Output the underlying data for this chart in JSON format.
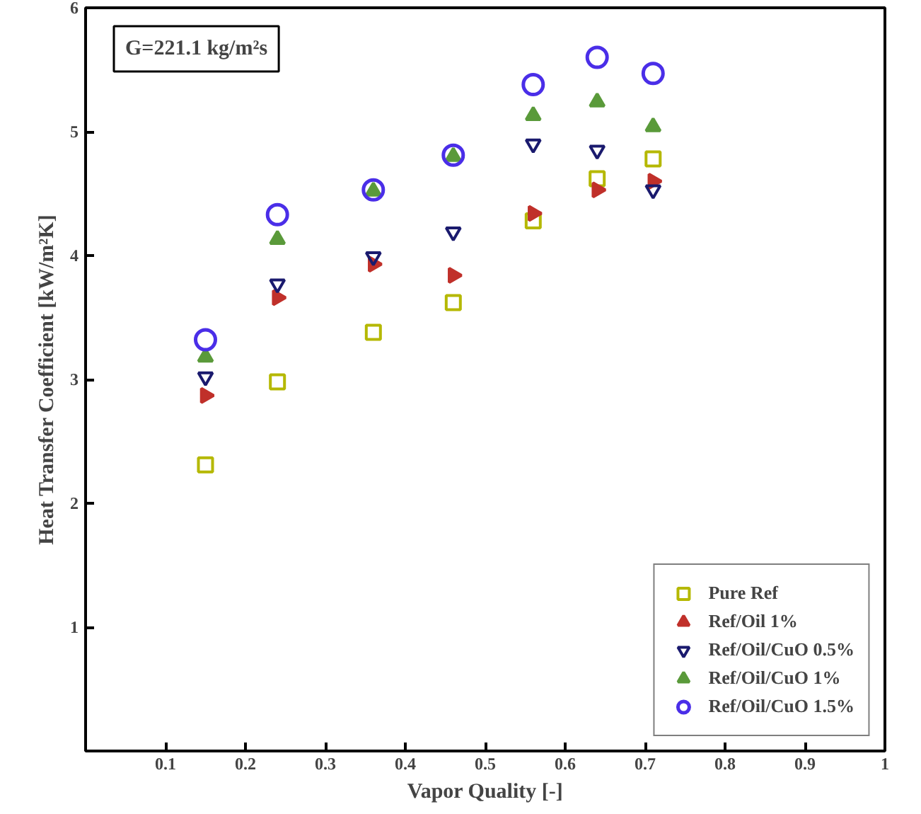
{
  "chart_data": {
    "type": "scatter",
    "xlabel": "Vapor Quality [-]",
    "ylabel": "Heat Transfer Coefficient [kW/m²K]",
    "annotations": [
      "G=221.1 kg/m²s"
    ],
    "x": [
      0.15,
      0.24,
      0.36,
      0.46,
      0.56,
      0.64,
      0.71
    ],
    "series": [
      {
        "name": "Pure Ref",
        "color": "#b5b800",
        "marker": "square",
        "values": [
          2.31,
          2.98,
          3.38,
          3.62,
          4.28,
          4.62,
          4.78
        ]
      },
      {
        "name": "Ref/Oil 1%",
        "color": "#c0302a",
        "marker": "triangle_right",
        "values": [
          2.87,
          3.66,
          3.93,
          3.84,
          4.34,
          4.53,
          4.6
        ]
      },
      {
        "name": "Ref/Oil/CuO 0.5%",
        "color": "#1a1a6e",
        "marker": "triangle_down",
        "values": [
          3.02,
          3.77,
          3.99,
          4.19,
          4.9,
          4.85,
          4.53
        ]
      },
      {
        "name": "Ref/Oil/CuO 1%",
        "color": "#5a9a3a",
        "marker": "triangle",
        "values": [
          3.18,
          4.13,
          4.52,
          4.8,
          5.13,
          5.24,
          5.04
        ]
      },
      {
        "name": "Ref/Oil/CuO 1.5%",
        "color": "#4a2ee8",
        "marker": "circle",
        "values": [
          3.32,
          4.33,
          4.53,
          4.81,
          5.38,
          5.6,
          5.47
        ]
      }
    ],
    "xlim": [
      0,
      1
    ],
    "ylim": [
      0,
      6
    ],
    "xticks": [
      0.1,
      0.2,
      0.3,
      0.4,
      0.5,
      0.6,
      0.7,
      0.8,
      0.9,
      1
    ],
    "yticks": [
      1,
      2,
      3,
      4,
      5,
      6
    ],
    "grid": false,
    "legend": "bottom right"
  }
}
